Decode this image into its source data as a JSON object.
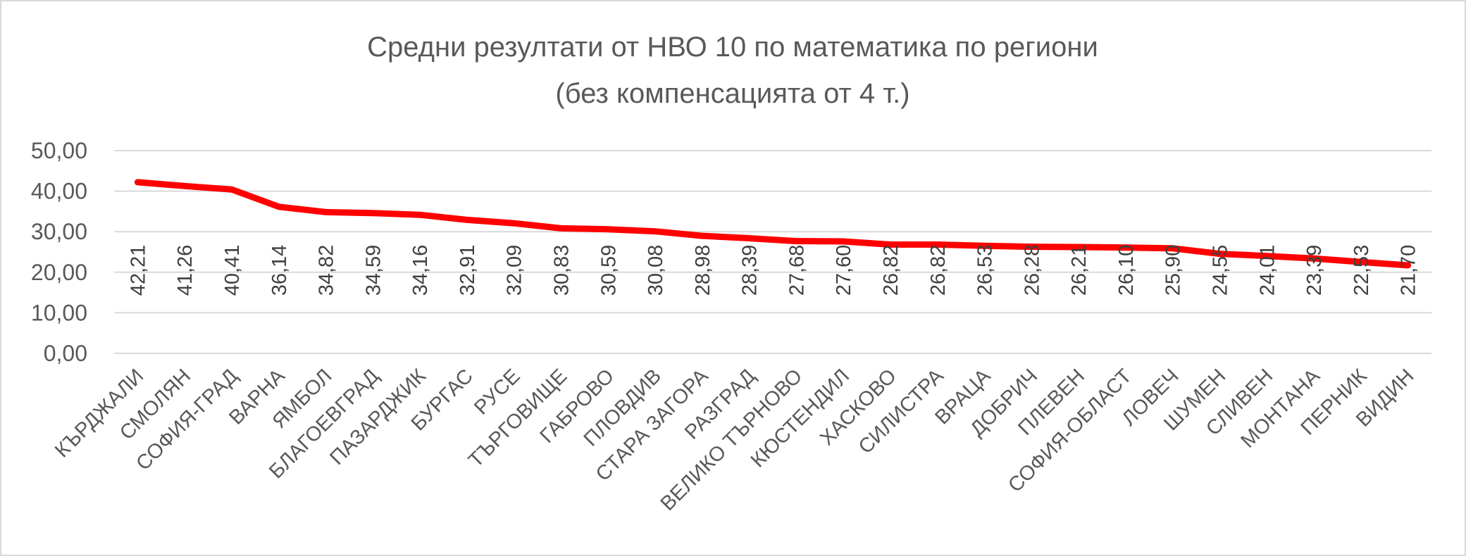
{
  "chart_data": {
    "type": "line",
    "title": "Средни резултати от НВО 10 по математика по региони",
    "subtitle": "(без компенсацията от 4 т.)",
    "xlabel": "",
    "ylabel": "",
    "ylim": [
      0,
      50
    ],
    "yticks": [
      "0,00",
      "10,00",
      "20,00",
      "30,00",
      "40,00",
      "50,00"
    ],
    "grid": true,
    "legend": "none",
    "line_color": "#ff0000",
    "categories": [
      "КЪРДЖАЛИ",
      "СМОЛЯН",
      "СОФИЯ-ГРАД",
      "ВАРНА",
      "ЯМБОЛ",
      "БЛАГОЕВГРАД",
      "ПАЗАРДЖИК",
      "БУРГАС",
      "РУСЕ",
      "ТЪРГОВИЩЕ",
      "ГАБРОВО",
      "ПЛОВДИВ",
      "СТАРА ЗАГОРА",
      "РАЗГРАД",
      "ВЕЛИКО ТЪРНОВО",
      "КЮСТЕНДИЛ",
      "ХАСКОВО",
      "СИЛИСТРА",
      "ВРАЦА",
      "ДОБРИЧ",
      "ПЛЕВЕН",
      "СОФИЯ-ОБЛАСТ",
      "ЛОВЕЧ",
      "ШУМЕН",
      "СЛИВЕН",
      "МОНТАНА",
      "ПЕРНИК",
      "ВИДИН"
    ],
    "values": [
      42.21,
      41.26,
      40.41,
      36.14,
      34.82,
      34.59,
      34.16,
      32.91,
      32.09,
      30.83,
      30.59,
      30.08,
      28.98,
      28.39,
      27.68,
      27.6,
      26.82,
      26.82,
      26.53,
      26.28,
      26.21,
      26.1,
      25.9,
      24.55,
      24.01,
      23.39,
      22.53,
      21.7
    ],
    "data_labels": [
      "42,21",
      "41,26",
      "40,41",
      "36,14",
      "34,82",
      "34,59",
      "34,16",
      "32,91",
      "32,09",
      "30,83",
      "30,59",
      "30,08",
      "28,98",
      "28,39",
      "27,68",
      "27,60",
      "26,82",
      "26,82",
      "26,53",
      "26,28",
      "26,21",
      "26,10",
      "25,90",
      "24,55",
      "24,01",
      "23,39",
      "22,53",
      "21,70"
    ]
  }
}
